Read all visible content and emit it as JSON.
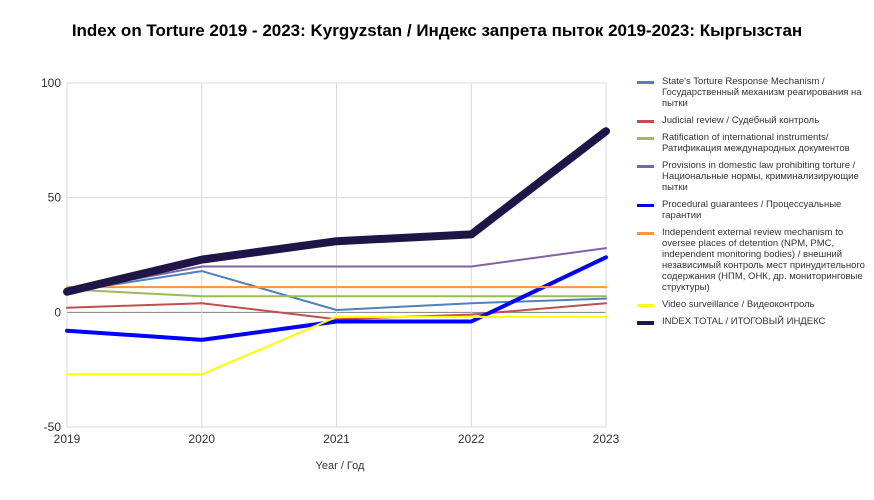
{
  "chart_data": {
    "type": "line",
    "title": "Index on Torture 2019 - 2023: Kyrgyzstan / Индекс запрета пыток 2019-2023: Кыргызстан",
    "xlabel": "Year / Год",
    "ylabel": "",
    "x": [
      "2019",
      "2020",
      "2021",
      "2022",
      "2023"
    ],
    "ylim": [
      -50,
      100
    ],
    "yticks": [
      "100",
      "50",
      "0",
      "-50"
    ],
    "grid": true,
    "legend_position": "right",
    "series": [
      {
        "name": "State's Torture Response Mechanism / Государственный механизм реагирования на пытки",
        "color": "#4f81bd",
        "values": [
          9,
          18,
          1,
          4,
          6
        ]
      },
      {
        "name": "Judicial review / Судебный контроль",
        "color": "#c0504d",
        "values": [
          2,
          4,
          -3,
          -1,
          4
        ]
      },
      {
        "name": "Ratification of international instruments/ Ратификация международных документов",
        "color": "#9bbb59",
        "values": [
          10,
          7,
          7,
          7,
          7
        ]
      },
      {
        "name": "Provisions in domestic law prohibiting torture / Национальные нормы, криминализирующие пытки",
        "color": "#8064a2",
        "values": [
          9,
          20,
          20,
          20,
          28
        ]
      },
      {
        "name": "Procedural guarantees / Процессуальные гарантии",
        "color": "#0000ff",
        "values": [
          -8,
          -12,
          -4,
          -4,
          24
        ]
      },
      {
        "name": "Independent external review mechanism to oversee places of detention (NPM, PMC, independent monitoring bodies) / внешний независимый контроль мест принудительного содержания (НПМ, ОНК, др. мониторинговые структуры)",
        "color": "#f79646",
        "values": [
          11,
          11,
          11,
          11,
          11
        ]
      },
      {
        "name": "Video surveillance / Видеоконтроль",
        "color": "#ffff00",
        "values": [
          -27,
          -27,
          -2,
          -2,
          -2
        ]
      },
      {
        "name": "INDEX TOTAL /  ИТОГОВЫЙ ИНДЕКС",
        "color": "#1f1647",
        "values": [
          9,
          23,
          31,
          34,
          79
        ]
      }
    ]
  }
}
